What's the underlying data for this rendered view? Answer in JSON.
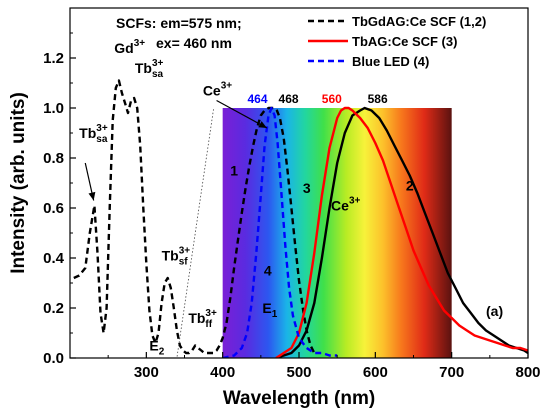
{
  "chart_data": {
    "type": "line",
    "xlabel": "Wavelength (nm)",
    "ylabel": "Intensity (arb. units)",
    "xlim": [
      200,
      800
    ],
    "ylim": [
      0.0,
      1.4
    ],
    "xticks": [
      "300",
      "400",
      "500",
      "600",
      "700",
      "800"
    ],
    "yticks": [
      "0.0",
      "0.2",
      "0.4",
      "0.6",
      "0.8",
      "1.0",
      "1.2"
    ],
    "legend_position": "top-right",
    "conditions": [
      "SCFs: em=575 nm;",
      "ex= 460 nm"
    ],
    "panel_label": "(a)",
    "spectrum_band": {
      "x_start": 400,
      "x_end": 700,
      "y_top": 1.0
    },
    "legend": [
      {
        "label": "TbGdAG:Ce SCF (1,2)",
        "color": "#000000",
        "dash": "dashed"
      },
      {
        "label": "TbAG:Ce SCF (3)",
        "color": "#ff0000",
        "dash": "solid"
      },
      {
        "label": "Blue LED (4)",
        "color": "#0000ff",
        "dash": "dashed"
      }
    ],
    "peak_labels": [
      {
        "text": "464",
        "x": 464,
        "color": "#0000ff"
      },
      {
        "text": "468",
        "x": 468,
        "color": "#000000"
      },
      {
        "text": "560",
        "x": 560,
        "color": "#ff0000"
      },
      {
        "text": "586",
        "x": 586,
        "color": "#000000"
      }
    ],
    "annotations": [
      {
        "id": "gd",
        "main": "Gd",
        "sup": "3+",
        "sub": "",
        "x": 258,
        "y": 1.22
      },
      {
        "id": "tb-sa-top",
        "main": "Tb",
        "sup": "3+",
        "sub": "sa",
        "x": 285,
        "y": 1.14
      },
      {
        "id": "tb-sa-left",
        "main": "Tb",
        "sup": "3+",
        "sub": "sa",
        "x": 212,
        "y": 0.88
      },
      {
        "id": "tb-sf",
        "main": "Tb",
        "sup": "3+",
        "sub": "sf",
        "x": 320,
        "y": 0.39
      },
      {
        "id": "tb-ff",
        "main": "Tb",
        "sup": "3+",
        "sub": "ff",
        "x": 355,
        "y": 0.14
      },
      {
        "id": "e2",
        "main": "E",
        "sup": "",
        "sub": "2",
        "x": 304,
        "y": 0.03
      },
      {
        "id": "ce-top",
        "main": "Ce",
        "sup": "3+",
        "sub": "",
        "x": 374,
        "y": 1.05
      },
      {
        "id": "ce-mid",
        "main": "Ce",
        "sup": "3+",
        "sub": "",
        "x": 542,
        "y": 0.59
      },
      {
        "id": "e1",
        "main": "E",
        "sup": "",
        "sub": "1",
        "x": 452,
        "y": 0.18
      },
      {
        "id": "lbl-1",
        "main": "1",
        "sup": "",
        "sub": "",
        "x": 410,
        "y": 0.73
      },
      {
        "id": "lbl-2",
        "main": "2",
        "sup": "",
        "sub": "",
        "x": 640,
        "y": 0.67
      },
      {
        "id": "lbl-3",
        "main": "3",
        "sup": "",
        "sub": "",
        "x": 505,
        "y": 0.66
      },
      {
        "id": "lbl-4",
        "main": "4",
        "sup": "",
        "sub": "",
        "x": 454,
        "y": 0.33
      }
    ],
    "series": [
      {
        "name": "TbGdAG:Ce SCF (1,2)",
        "curve": "1",
        "color": "#000000",
        "dash": "dashed",
        "x": [
          205,
          212,
          220,
          226,
          232,
          236,
          240,
          244,
          248,
          252,
          256,
          260,
          264,
          268,
          272,
          276,
          280,
          284,
          288,
          292,
          296,
          300,
          304,
          308,
          312,
          316,
          320,
          324,
          328,
          332,
          336,
          340,
          344,
          348,
          352,
          356,
          360,
          364,
          368,
          372,
          376,
          380,
          384,
          388,
          392,
          396,
          400,
          405,
          410,
          415,
          420,
          425,
          430,
          435,
          440,
          445,
          450,
          455,
          460,
          465,
          468,
          471,
          475,
          480,
          485,
          490,
          495,
          500,
          505,
          510,
          515,
          520
        ],
        "y": [
          0.32,
          0.33,
          0.36,
          0.5,
          0.61,
          0.42,
          0.18,
          0.1,
          0.2,
          0.6,
          0.95,
          1.08,
          1.11,
          1.06,
          1.02,
          0.98,
          1.03,
          1.04,
          1.0,
          0.85,
          0.6,
          0.38,
          0.19,
          0.09,
          0.06,
          0.1,
          0.22,
          0.3,
          0.32,
          0.28,
          0.2,
          0.11,
          0.05,
          0.03,
          0.02,
          0.02,
          0.03,
          0.05,
          0.04,
          0.03,
          0.02,
          0.02,
          0.02,
          0.02,
          0.03,
          0.05,
          0.08,
          0.14,
          0.24,
          0.36,
          0.47,
          0.58,
          0.68,
          0.77,
          0.85,
          0.92,
          0.97,
          0.99,
          1.0,
          1.0,
          1.0,
          0.99,
          0.96,
          0.88,
          0.75,
          0.6,
          0.45,
          0.31,
          0.2,
          0.11,
          0.05,
          0.02
        ]
      },
      {
        "name": "TbGdAG:Ce SCF (1,2)",
        "curve": "2",
        "color": "#000000",
        "dash": "solid",
        "x": [
          470,
          480,
          490,
          500,
          510,
          520,
          530,
          540,
          550,
          560,
          570,
          580,
          586,
          595,
          605,
          615,
          625,
          635,
          645,
          655,
          665,
          675,
          685,
          695,
          705,
          715,
          725,
          735,
          745,
          755,
          765,
          775,
          785,
          795,
          800
        ],
        "y": [
          0.0,
          0.01,
          0.02,
          0.05,
          0.11,
          0.22,
          0.4,
          0.6,
          0.78,
          0.9,
          0.97,
          0.99,
          1.0,
          0.99,
          0.96,
          0.91,
          0.85,
          0.79,
          0.73,
          0.66,
          0.58,
          0.5,
          0.42,
          0.34,
          0.28,
          0.22,
          0.18,
          0.14,
          0.11,
          0.09,
          0.07,
          0.05,
          0.04,
          0.03,
          0.02
        ]
      },
      {
        "name": "TbAG:Ce SCF (3)",
        "curve": "3",
        "color": "#ff0000",
        "dash": "solid",
        "x": [
          470,
          480,
          490,
          500,
          510,
          520,
          530,
          540,
          550,
          555,
          560,
          565,
          570,
          580,
          590,
          600,
          610,
          620,
          630,
          640,
          650,
          660,
          670,
          680,
          690,
          700,
          710,
          720,
          730,
          740,
          750,
          760,
          770,
          780,
          790,
          800
        ],
        "y": [
          0.0,
          0.02,
          0.04,
          0.1,
          0.22,
          0.42,
          0.65,
          0.84,
          0.96,
          0.99,
          1.0,
          1.0,
          0.99,
          0.96,
          0.92,
          0.86,
          0.79,
          0.7,
          0.61,
          0.52,
          0.43,
          0.36,
          0.29,
          0.24,
          0.19,
          0.16,
          0.13,
          0.11,
          0.09,
          0.08,
          0.07,
          0.06,
          0.05,
          0.04,
          0.04,
          0.03
        ]
      },
      {
        "name": "Blue LED (4)",
        "curve": "4",
        "color": "#0000ff",
        "dash": "dashed",
        "x": [
          400,
          415,
          425,
          432,
          438,
          444,
          450,
          455,
          460,
          464,
          468,
          472,
          477,
          482,
          487,
          492,
          500,
          510,
          520,
          530,
          540,
          550
        ],
        "y": [
          0.0,
          0.01,
          0.04,
          0.1,
          0.22,
          0.42,
          0.65,
          0.85,
          0.97,
          1.0,
          0.97,
          0.86,
          0.66,
          0.45,
          0.28,
          0.17,
          0.08,
          0.04,
          0.02,
          0.02,
          0.01,
          0.01
        ]
      }
    ]
  }
}
